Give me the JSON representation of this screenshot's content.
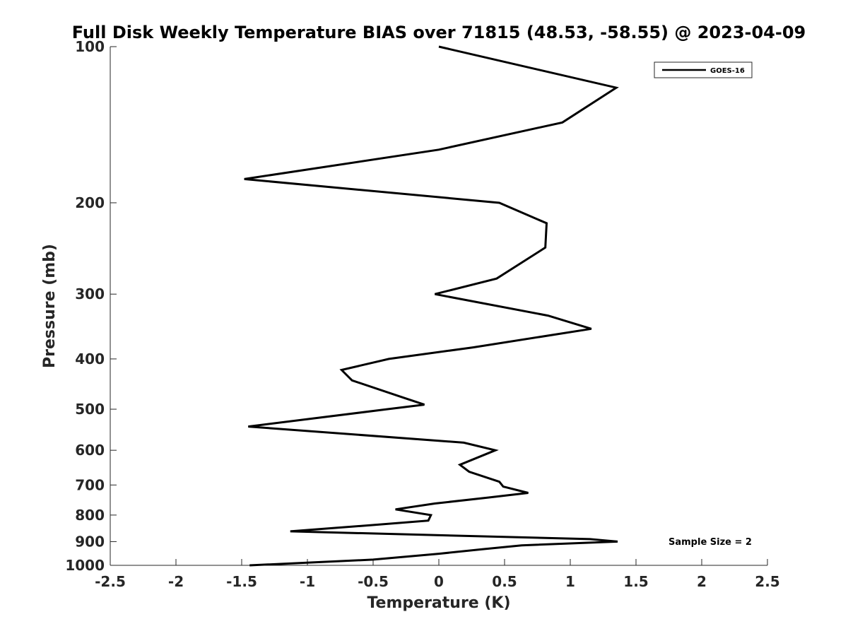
{
  "chart_data": {
    "type": "line",
    "title": "Full Disk Weekly Temperature BIAS over 71815 (48.53, -58.55) @ 2023-04-09",
    "xlabel": "Temperature (K)",
    "ylabel": "Pressure (mb)",
    "xlim": [
      -2.5,
      2.5
    ],
    "ylim": [
      100,
      1000
    ],
    "y_scale": "log",
    "y_reversed": true,
    "x_ticks": [
      "-2.5",
      "-2",
      "-1.5",
      "-1",
      "-0.5",
      "0",
      "0.5",
      "1",
      "1.5",
      "2",
      "2.5"
    ],
    "x_tick_values": [
      -2.5,
      -2,
      -1.5,
      -1,
      -0.5,
      0,
      0.5,
      1,
      1.5,
      2,
      2.5
    ],
    "y_ticks": [
      "100",
      "200",
      "300",
      "400",
      "500",
      "600",
      "700",
      "800",
      "900",
      "1000"
    ],
    "y_tick_values": [
      100,
      200,
      300,
      400,
      500,
      600,
      700,
      800,
      900,
      1000
    ],
    "grid": false,
    "legend_position": "top-right",
    "series": [
      {
        "name": "GOES-16",
        "color": "#000000",
        "points": [
          {
            "x": 0.0,
            "p": 100
          },
          {
            "x": 1.35,
            "p": 120
          },
          {
            "x": 0.94,
            "p": 140
          },
          {
            "x": 0.0,
            "p": 158
          },
          {
            "x": -1.48,
            "p": 180
          },
          {
            "x": 0.46,
            "p": 200
          },
          {
            "x": 0.82,
            "p": 219
          },
          {
            "x": 0.81,
            "p": 244
          },
          {
            "x": 0.44,
            "p": 280
          },
          {
            "x": -0.03,
            "p": 300
          },
          {
            "x": 0.83,
            "p": 330
          },
          {
            "x": 1.16,
            "p": 350
          },
          {
            "x": 0.26,
            "p": 380
          },
          {
            "x": -0.38,
            "p": 400
          },
          {
            "x": -0.74,
            "p": 420
          },
          {
            "x": -0.66,
            "p": 440
          },
          {
            "x": -0.27,
            "p": 475
          },
          {
            "x": -0.11,
            "p": 490
          },
          {
            "x": -0.39,
            "p": 500
          },
          {
            "x": -1.45,
            "p": 540
          },
          {
            "x": 0.19,
            "p": 580
          },
          {
            "x": 0.43,
            "p": 600
          },
          {
            "x": 0.16,
            "p": 640
          },
          {
            "x": 0.23,
            "p": 660
          },
          {
            "x": 0.46,
            "p": 690
          },
          {
            "x": 0.49,
            "p": 705
          },
          {
            "x": 0.68,
            "p": 725
          },
          {
            "x": 0.38,
            "p": 740
          },
          {
            "x": -0.03,
            "p": 760
          },
          {
            "x": -0.33,
            "p": 780
          },
          {
            "x": -0.06,
            "p": 800
          },
          {
            "x": -0.08,
            "p": 820
          },
          {
            "x": -0.47,
            "p": 835
          },
          {
            "x": -1.13,
            "p": 860
          },
          {
            "x": 1.15,
            "p": 890
          },
          {
            "x": 1.36,
            "p": 900
          },
          {
            "x": 0.63,
            "p": 915
          },
          {
            "x": 0.35,
            "p": 930
          },
          {
            "x": 0.0,
            "p": 950
          },
          {
            "x": -0.5,
            "p": 975
          },
          {
            "x": -1.44,
            "p": 1000
          }
        ]
      }
    ],
    "annotations": [
      "Sample Size = 2"
    ]
  }
}
